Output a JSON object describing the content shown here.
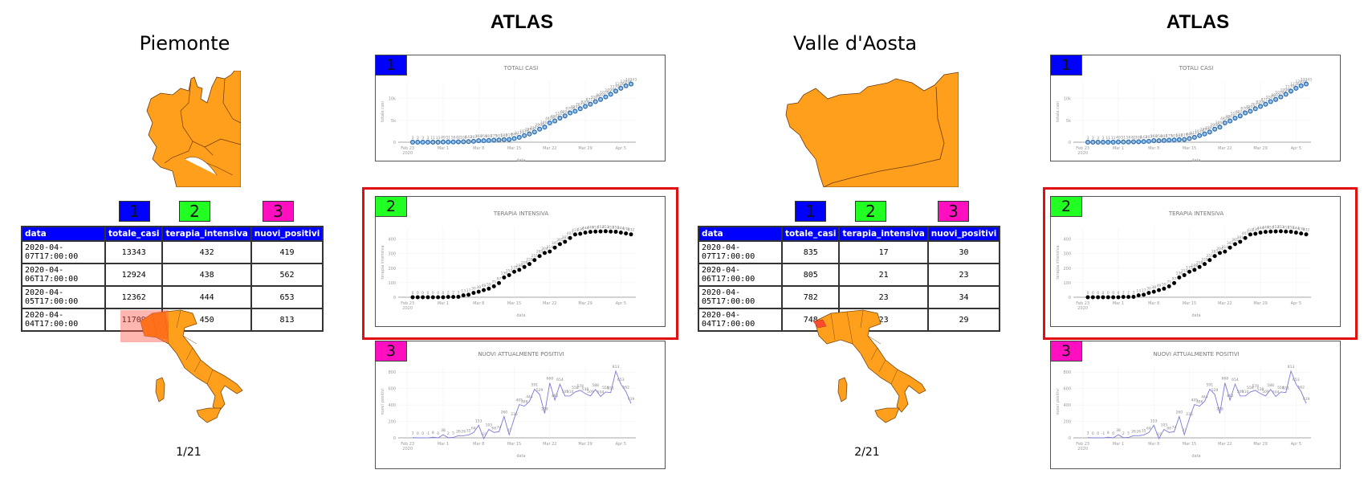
{
  "slides": [
    {
      "region_name": "Piemonte",
      "atlas_title": "ATLAS",
      "page_counter": "1/21",
      "badges": [
        "1",
        "2",
        "3"
      ],
      "table": {
        "columns": [
          "data",
          "totale_casi",
          "terapia_intensiva",
          "nuovi_positivi"
        ],
        "rows": [
          [
            "2020-04-07T17:00:00",
            "13343",
            "432",
            "419"
          ],
          [
            "2020-04-06T17:00:00",
            "12924",
            "438",
            "562"
          ],
          [
            "2020-04-05T17:00:00",
            "12362",
            "444",
            "653"
          ],
          [
            "2020-04-04T17:00:00",
            "11709",
            "450",
            "813"
          ]
        ]
      }
    },
    {
      "region_name": "Valle d'Aosta",
      "atlas_title": "ATLAS",
      "page_counter": "2/21",
      "badges": [
        "1",
        "2",
        "3"
      ],
      "table": {
        "columns": [
          "data",
          "totale_casi",
          "terapia_intensiva",
          "nuovi_positivi"
        ],
        "rows": [
          [
            "2020-04-07T17:00:00",
            "835",
            "17",
            "30"
          ],
          [
            "2020-04-06T17:00:00",
            "805",
            "21",
            "23"
          ],
          [
            "2020-04-05T17:00:00",
            "782",
            "23",
            "34"
          ],
          [
            "2020-04-04T17:00:00",
            "748",
            "23",
            "29"
          ]
        ]
      }
    }
  ],
  "colors": {
    "badge_1": "#0000ff",
    "badge_2": "#22ff22",
    "badge_3": "#ff0fc0",
    "table_header": "#0000ff",
    "highlight": "#e01010",
    "map_fill": "#ff9f1c",
    "map_highlight": "#ff6a10",
    "series_totali": "#2f6fb0",
    "series_terapia": "#000000",
    "series_nuovi": "#7a78d8"
  },
  "chart_data": [
    {
      "type": "scatter",
      "badge": "1",
      "title": "TOTALI CASI",
      "xlabel": "data",
      "ylabel": "totale casi",
      "x_ticks": [
        "Feb 23\n2020",
        "Mar 1",
        "Mar 8",
        "Mar 15",
        "Mar 22",
        "Mar 29",
        "Apr 5"
      ],
      "y_ticks": [
        "0",
        "5k",
        "10k"
      ],
      "ylim": [
        0,
        14000
      ],
      "x": [
        "02-24",
        "02-25",
        "02-26",
        "02-27",
        "02-28",
        "02-29",
        "03-01",
        "03-02",
        "03-03",
        "03-04",
        "03-05",
        "03-06",
        "03-07",
        "03-08",
        "03-09",
        "03-10",
        "03-11",
        "03-12",
        "03-13",
        "03-14",
        "03-15",
        "03-16",
        "03-17",
        "03-18",
        "03-19",
        "03-20",
        "03-21",
        "03-22",
        "03-23",
        "03-24",
        "03-25",
        "03-26",
        "03-27",
        "03-28",
        "03-29",
        "03-30",
        "03-31",
        "04-01",
        "04-02",
        "04-03",
        "04-04",
        "04-05",
        "04-06",
        "04-07"
      ],
      "values": [
        3,
        3,
        3,
        3,
        11,
        11,
        49,
        51,
        56,
        82,
        108,
        143,
        207,
        360,
        350,
        401,
        475,
        501,
        582,
        615,
        840,
        1111,
        1516,
        1897,
        2341,
        2990,
        3461,
        4420,
        4861,
        5515,
        6024,
        6708,
        7092,
        7671,
        8206,
        8712,
        9301,
        9801,
        10384,
        10988,
        11709,
        12362,
        12924,
        13343
      ]
    },
    {
      "type": "scatter",
      "badge": "2",
      "title": "TERAPIA INTENSIVA",
      "xlabel": "data",
      "ylabel": "terapia intensiva",
      "x_ticks": [
        "Feb 23\n2020",
        "Mar 1",
        "Mar 8",
        "Mar 15",
        "Mar 22",
        "Mar 29",
        "Apr 5"
      ],
      "y_ticks": [
        "0",
        "100",
        "200",
        "300",
        "400"
      ],
      "ylim": [
        0,
        480
      ],
      "highlighted": true,
      "values": [
        0,
        0,
        0,
        0,
        0,
        0,
        0,
        2,
        2,
        3,
        13,
        17,
        30,
        38,
        49,
        59,
        75,
        97,
        136,
        152,
        175,
        188,
        208,
        228,
        255,
        283,
        304,
        314,
        341,
        365,
        381,
        407,
        431,
        436,
        444,
        449,
        451,
        452,
        453,
        451,
        450,
        444,
        438,
        432
      ]
    },
    {
      "type": "line",
      "badge": "3",
      "title": "NUOVI ATTUALMENTE POSITIVI",
      "xlabel": "data",
      "ylabel": "nuovi positivi",
      "x_ticks": [
        "Feb 23\n2020",
        "Mar 1",
        "Mar 8",
        "Mar 15",
        "Mar 22",
        "Mar 29",
        "Apr 5"
      ],
      "y_ticks": [
        "0",
        "200",
        "400",
        "600",
        "800"
      ],
      "ylim": [
        0,
        880
      ],
      "values": [
        3,
        0,
        0,
        -1,
        8,
        0,
        38,
        2,
        5,
        26,
        26,
        35,
        64,
        153,
        -10,
        103,
        66,
        74,
        260,
        37,
        236,
        405,
        386,
        444,
        591,
        529,
        298,
        668,
        460,
        654,
        509,
        510,
        558,
        578,
        538,
        509,
        588,
        504,
        558,
        551,
        813,
        653,
        562,
        419
      ]
    }
  ]
}
